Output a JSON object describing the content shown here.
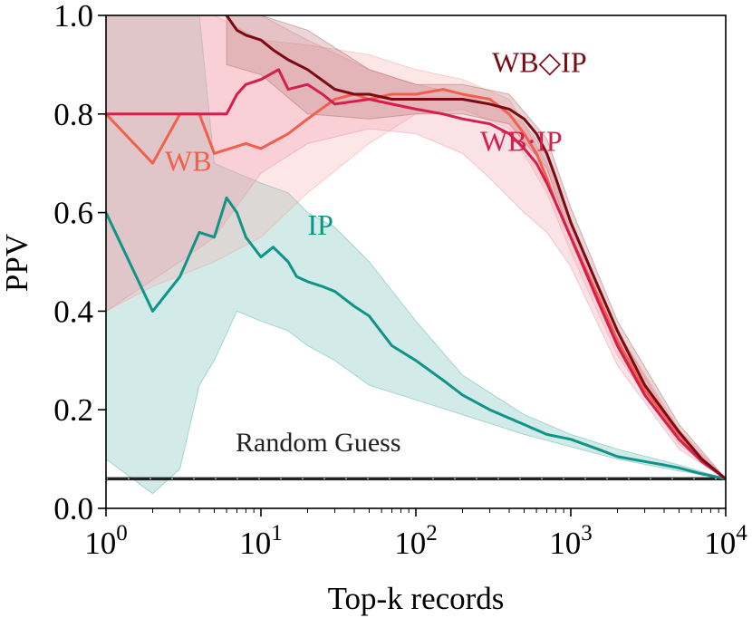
{
  "chart_data": {
    "type": "line",
    "xscale": "log",
    "xlim": [
      1,
      10000
    ],
    "ylim": [
      0.0,
      1.0
    ],
    "xlabel": "Top-k records",
    "ylabel": "PPV",
    "xticks": [
      {
        "value": 1,
        "base": "10",
        "exp": "0"
      },
      {
        "value": 10,
        "base": "10",
        "exp": "1"
      },
      {
        "value": 100,
        "base": "10",
        "exp": "2"
      },
      {
        "value": 1000,
        "base": "10",
        "exp": "3"
      },
      {
        "value": 10000,
        "base": "10",
        "exp": "4"
      }
    ],
    "yticks": [
      {
        "value": 0.0,
        "label": "0.0"
      },
      {
        "value": 0.2,
        "label": "0.2"
      },
      {
        "value": 0.4,
        "label": "0.4"
      },
      {
        "value": 0.6,
        "label": "0.6"
      },
      {
        "value": 0.8,
        "label": "0.8"
      },
      {
        "value": 1.0,
        "label": "1.0"
      }
    ],
    "baseline": {
      "label": "Random Guess",
      "value": 0.06,
      "color": "#222222"
    },
    "series": [
      {
        "name": "IP",
        "label": "IP",
        "color": "#0f9488",
        "band_color": "#5fb8b0",
        "label_at": [
          20,
          0.555
        ],
        "points": [
          [
            1,
            0.6
          ],
          [
            2,
            0.4
          ],
          [
            3,
            0.47
          ],
          [
            4,
            0.56
          ],
          [
            5,
            0.55
          ],
          [
            6,
            0.63
          ],
          [
            7,
            0.6
          ],
          [
            8,
            0.55
          ],
          [
            10,
            0.51
          ],
          [
            12,
            0.53
          ],
          [
            15,
            0.5
          ],
          [
            17,
            0.47
          ],
          [
            20,
            0.46
          ],
          [
            25,
            0.45
          ],
          [
            30,
            0.44
          ],
          [
            40,
            0.41
          ],
          [
            50,
            0.39
          ],
          [
            70,
            0.33
          ],
          [
            100,
            0.3
          ],
          [
            150,
            0.26
          ],
          [
            200,
            0.23
          ],
          [
            300,
            0.2
          ],
          [
            500,
            0.17
          ],
          [
            700,
            0.15
          ],
          [
            1000,
            0.14
          ],
          [
            1500,
            0.12
          ],
          [
            2000,
            0.105
          ],
          [
            3000,
            0.095
          ],
          [
            4000,
            0.088
          ],
          [
            5000,
            0.082
          ],
          [
            7000,
            0.07
          ],
          [
            10000,
            0.06
          ]
        ],
        "band": [
          [
            1,
            0.1,
            1.0
          ],
          [
            2,
            0.03,
            1.0
          ],
          [
            3,
            0.08,
            1.0
          ],
          [
            4,
            0.25,
            1.0
          ],
          [
            5,
            0.3,
            0.7
          ],
          [
            7,
            0.4,
            0.68
          ],
          [
            10,
            0.38,
            0.66
          ],
          [
            15,
            0.36,
            0.64
          ],
          [
            20,
            0.33,
            0.6
          ],
          [
            30,
            0.3,
            0.57
          ],
          [
            50,
            0.25,
            0.5
          ],
          [
            100,
            0.22,
            0.38
          ],
          [
            200,
            0.19,
            0.27
          ],
          [
            500,
            0.15,
            0.19
          ],
          [
            1000,
            0.125,
            0.15
          ],
          [
            2000,
            0.1,
            0.12
          ],
          [
            5000,
            0.076,
            0.088
          ],
          [
            10000,
            0.06,
            0.06
          ]
        ]
      },
      {
        "name": "WB",
        "label": "WB",
        "color": "#f2604d",
        "band_color": "#f6a8a6",
        "label_at": [
          2.4,
          0.685
        ],
        "points": [
          [
            1,
            0.8
          ],
          [
            2,
            0.7
          ],
          [
            3,
            0.8
          ],
          [
            4,
            0.8
          ],
          [
            5,
            0.72
          ],
          [
            8,
            0.74
          ],
          [
            10,
            0.73
          ],
          [
            15,
            0.76
          ],
          [
            20,
            0.79
          ],
          [
            30,
            0.83
          ],
          [
            40,
            0.84
          ],
          [
            50,
            0.83
          ],
          [
            70,
            0.84
          ],
          [
            100,
            0.84
          ],
          [
            150,
            0.85
          ],
          [
            200,
            0.84
          ],
          [
            300,
            0.83
          ],
          [
            400,
            0.8
          ],
          [
            500,
            0.76
          ],
          [
            600,
            0.72
          ],
          [
            700,
            0.67
          ],
          [
            800,
            0.62
          ],
          [
            1000,
            0.55
          ],
          [
            1500,
            0.43
          ],
          [
            2000,
            0.34
          ],
          [
            3000,
            0.24
          ],
          [
            5000,
            0.15
          ],
          [
            7000,
            0.1
          ],
          [
            10000,
            0.06
          ]
        ],
        "band": [
          [
            1,
            0.4,
            1.0
          ],
          [
            2,
            0.45,
            1.0
          ],
          [
            5,
            0.5,
            1.0
          ],
          [
            10,
            0.55,
            0.95
          ],
          [
            20,
            0.64,
            0.94
          ],
          [
            50,
            0.74,
            0.92
          ],
          [
            100,
            0.8,
            0.89
          ],
          [
            200,
            0.81,
            0.87
          ],
          [
            400,
            0.77,
            0.83
          ],
          [
            700,
            0.64,
            0.7
          ],
          [
            1000,
            0.52,
            0.58
          ],
          [
            2000,
            0.31,
            0.36
          ],
          [
            5000,
            0.13,
            0.16
          ],
          [
            10000,
            0.06,
            0.06
          ]
        ]
      },
      {
        "name": "WB·IP",
        "label": "WB·IP",
        "color": "#d61e4c",
        "band_color": "#ee98a8",
        "label_at": [
          260,
          0.725
        ],
        "points": [
          [
            1,
            0.8
          ],
          [
            2,
            0.8
          ],
          [
            3,
            0.8
          ],
          [
            4,
            0.8
          ],
          [
            5,
            0.8
          ],
          [
            6,
            0.8
          ],
          [
            7,
            0.84
          ],
          [
            8,
            0.86
          ],
          [
            10,
            0.87
          ],
          [
            13,
            0.89
          ],
          [
            15,
            0.85
          ],
          [
            20,
            0.86
          ],
          [
            25,
            0.84
          ],
          [
            30,
            0.82
          ],
          [
            50,
            0.83
          ],
          [
            70,
            0.82
          ],
          [
            100,
            0.81
          ],
          [
            150,
            0.8
          ],
          [
            200,
            0.79
          ],
          [
            300,
            0.78
          ],
          [
            400,
            0.76
          ],
          [
            500,
            0.73
          ],
          [
            600,
            0.7
          ],
          [
            700,
            0.66
          ],
          [
            800,
            0.62
          ],
          [
            1000,
            0.55
          ],
          [
            1500,
            0.42
          ],
          [
            2000,
            0.33
          ],
          [
            3000,
            0.23
          ],
          [
            5000,
            0.14
          ],
          [
            7000,
            0.095
          ],
          [
            10000,
            0.06
          ]
        ],
        "band": [
          [
            1,
            0.4,
            1.0
          ],
          [
            3,
            0.5,
            1.0
          ],
          [
            5,
            0.55,
            1.0
          ],
          [
            10,
            0.68,
            1.0
          ],
          [
            20,
            0.74,
            0.95
          ],
          [
            50,
            0.77,
            0.89
          ],
          [
            100,
            0.76,
            0.86
          ],
          [
            200,
            0.72,
            0.84
          ],
          [
            300,
            0.67,
            0.82
          ],
          [
            500,
            0.6,
            0.78
          ],
          [
            700,
            0.56,
            0.72
          ],
          [
            1000,
            0.49,
            0.58
          ],
          [
            2000,
            0.29,
            0.36
          ],
          [
            5000,
            0.12,
            0.15
          ],
          [
            10000,
            0.06,
            0.06
          ]
        ]
      },
      {
        "name": "WB◇IP",
        "label": "WB◇IP",
        "color": "#7a0a14",
        "band_color": "#b07070",
        "label_at": [
          310,
          0.885
        ],
        "points": [
          [
            6,
            1.0
          ],
          [
            7,
            0.97
          ],
          [
            8,
            0.96
          ],
          [
            10,
            0.95
          ],
          [
            12,
            0.93
          ],
          [
            15,
            0.91
          ],
          [
            20,
            0.89
          ],
          [
            30,
            0.85
          ],
          [
            40,
            0.84
          ],
          [
            50,
            0.84
          ],
          [
            70,
            0.83
          ],
          [
            100,
            0.83
          ],
          [
            150,
            0.83
          ],
          [
            200,
            0.83
          ],
          [
            300,
            0.82
          ],
          [
            400,
            0.81
          ],
          [
            500,
            0.79
          ],
          [
            600,
            0.76
          ],
          [
            700,
            0.72
          ],
          [
            800,
            0.67
          ],
          [
            1000,
            0.58
          ],
          [
            1500,
            0.45
          ],
          [
            2000,
            0.36
          ],
          [
            3000,
            0.25
          ],
          [
            5000,
            0.155
          ],
          [
            7000,
            0.1
          ],
          [
            10000,
            0.06
          ]
        ],
        "band": [
          [
            6,
            0.9,
            1.0
          ],
          [
            10,
            0.88,
            1.0
          ],
          [
            20,
            0.8,
            0.97
          ],
          [
            50,
            0.79,
            0.89
          ],
          [
            100,
            0.8,
            0.86
          ],
          [
            200,
            0.8,
            0.86
          ],
          [
            400,
            0.78,
            0.84
          ],
          [
            700,
            0.69,
            0.75
          ],
          [
            1000,
            0.55,
            0.61
          ],
          [
            2000,
            0.34,
            0.38
          ],
          [
            5000,
            0.14,
            0.17
          ],
          [
            10000,
            0.06,
            0.06
          ]
        ]
      }
    ]
  }
}
